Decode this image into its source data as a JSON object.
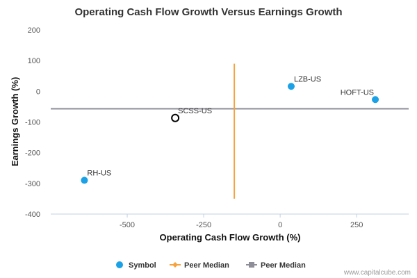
{
  "chart_data": {
    "type": "scatter",
    "title": "Operating Cash Flow Growth Versus Earnings Growth",
    "xlabel": "Operating Cash Flow Growth (%)",
    "ylabel": "Earnings Growth (%)",
    "xlim": [
      -750,
      420
    ],
    "ylim": [
      -400,
      200
    ],
    "xticks": [
      -500,
      -250,
      0,
      250
    ],
    "xtick_labels": [
      "-500",
      "-250",
      "0",
      "250"
    ],
    "yticks": [
      200,
      100,
      0,
      -100,
      -200,
      -300,
      -400
    ],
    "ytick_labels": [
      "200",
      "100",
      "0",
      "-100",
      "-200",
      "-300",
      "-400"
    ],
    "grid": false,
    "points": [
      {
        "label": "LZB-US",
        "x": 36,
        "y": 16,
        "highlight": false
      },
      {
        "label": "HOFT-US",
        "x": 311,
        "y": -27,
        "highlight": false
      },
      {
        "label": "SCSS-US",
        "x": -343,
        "y": -87,
        "highlight": true
      },
      {
        "label": "RH-US",
        "x": -640,
        "y": -290,
        "highlight": false
      }
    ],
    "peer_median_x": -150,
    "peer_median_x_span": [
      -350,
      90
    ],
    "peer_median_y": -57,
    "legend_position": "bottom-center",
    "legend": [
      {
        "label": "Symbol",
        "marker": "circle",
        "color": "#1aa1e6"
      },
      {
        "label": "Peer Median",
        "marker": "line-diamond",
        "color": "#f7a23b"
      },
      {
        "label": "Peer Median",
        "marker": "line-square",
        "color": "#8e8e98"
      }
    ],
    "colors": {
      "point": "#1aa1e6",
      "highlight_stroke": "#000000",
      "x_median": "#f7a23b",
      "y_median": "#8e8e98",
      "axis": "#c0d0e0"
    }
  },
  "watermark": "www.capitalcube.com"
}
